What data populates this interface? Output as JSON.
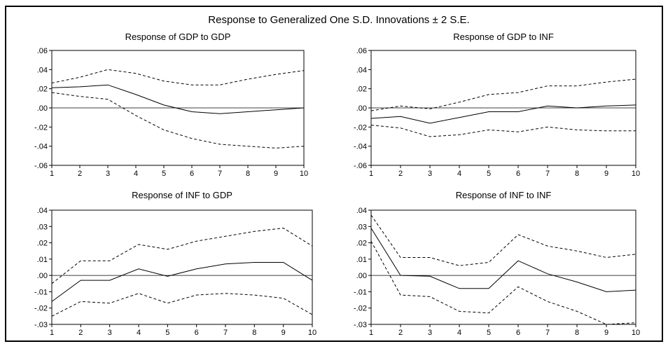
{
  "figure_title": "Response to Generalized One S.D. Innovations ± 2 S.E.",
  "chart_data": [
    {
      "type": "line",
      "title": "Response of GDP to GDP",
      "x": [
        1,
        2,
        3,
        4,
        5,
        6,
        7,
        8,
        9,
        10
      ],
      "ylim": [
        -0.06,
        0.06
      ],
      "yticks": [
        ".06",
        ".04",
        ".02",
        ".00",
        "-.02",
        "-.04",
        "-.06"
      ],
      "xticks": [
        "1",
        "2",
        "3",
        "4",
        "5",
        "6",
        "7",
        "8",
        "9",
        "10"
      ],
      "series": [
        {
          "style": "solid",
          "values": [
            0.021,
            0.022,
            0.024,
            0.014,
            0.003,
            -0.004,
            -0.006,
            -0.004,
            -0.002,
            0.0
          ]
        },
        {
          "style": "dashed",
          "values": [
            0.026,
            0.032,
            0.04,
            0.036,
            0.028,
            0.024,
            0.024,
            0.03,
            0.035,
            0.039
          ]
        },
        {
          "style": "dashed",
          "values": [
            0.016,
            0.012,
            0.009,
            -0.008,
            -0.023,
            -0.032,
            -0.038,
            -0.04,
            -0.042,
            -0.04
          ]
        }
      ]
    },
    {
      "type": "line",
      "title": "Response of GDP to INF",
      "x": [
        1,
        2,
        3,
        4,
        5,
        6,
        7,
        8,
        9,
        10
      ],
      "ylim": [
        -0.06,
        0.06
      ],
      "yticks": [
        ".06",
        ".04",
        ".02",
        ".00",
        "-.02",
        "-.04",
        "-.06"
      ],
      "xticks": [
        "1",
        "2",
        "3",
        "4",
        "5",
        "6",
        "7",
        "8",
        "9",
        "10"
      ],
      "series": [
        {
          "style": "solid",
          "values": [
            -0.011,
            -0.009,
            -0.016,
            -0.01,
            -0.004,
            -0.004,
            0.002,
            0.0,
            0.002,
            0.003
          ]
        },
        {
          "style": "dashed",
          "values": [
            -0.003,
            0.002,
            -0.001,
            0.006,
            0.014,
            0.016,
            0.023,
            0.023,
            0.027,
            0.03
          ]
        },
        {
          "style": "dashed",
          "values": [
            -0.018,
            -0.021,
            -0.03,
            -0.028,
            -0.023,
            -0.025,
            -0.02,
            -0.023,
            -0.024,
            -0.024
          ]
        }
      ]
    },
    {
      "type": "line",
      "title": "Response of INF to GDP",
      "x": [
        1,
        2,
        3,
        4,
        5,
        6,
        7,
        8,
        9,
        10
      ],
      "ylim": [
        -0.03,
        0.04
      ],
      "yticks": [
        ".04",
        ".03",
        ".02",
        ".01",
        ".00",
        "-.01",
        "-.02",
        "-.03"
      ],
      "xticks": [
        "1",
        "2",
        "3",
        "4",
        "5",
        "6",
        "7",
        "8",
        "9",
        "10"
      ],
      "series": [
        {
          "style": "solid",
          "values": [
            -0.016,
            -0.003,
            -0.003,
            0.004,
            -0.0005,
            0.004,
            0.007,
            0.008,
            0.008,
            -0.003
          ]
        },
        {
          "style": "dashed",
          "values": [
            -0.005,
            0.009,
            0.009,
            0.019,
            0.016,
            0.021,
            0.024,
            0.027,
            0.029,
            0.018
          ]
        },
        {
          "style": "dashed",
          "values": [
            -0.025,
            -0.016,
            -0.017,
            -0.011,
            -0.017,
            -0.012,
            -0.011,
            -0.012,
            -0.014,
            -0.024
          ]
        }
      ]
    },
    {
      "type": "line",
      "title": "Response of INF to INF",
      "x": [
        1,
        2,
        3,
        4,
        5,
        6,
        7,
        8,
        9,
        10
      ],
      "ylim": [
        -0.03,
        0.04
      ],
      "yticks": [
        ".04",
        ".03",
        ".02",
        ".01",
        ".00",
        "-.01",
        "-.02",
        "-.03"
      ],
      "xticks": [
        "1",
        "2",
        "3",
        "4",
        "5",
        "6",
        "7",
        "8",
        "9",
        "10"
      ],
      "series": [
        {
          "style": "solid",
          "values": [
            0.029,
            0.0,
            -0.0005,
            -0.008,
            -0.008,
            0.009,
            0.001,
            -0.004,
            -0.01,
            -0.009
          ]
        },
        {
          "style": "dashed",
          "values": [
            0.037,
            0.011,
            0.011,
            0.006,
            0.008,
            0.025,
            0.018,
            0.015,
            0.011,
            0.013
          ]
        },
        {
          "style": "dashed",
          "values": [
            0.021,
            -0.012,
            -0.013,
            -0.022,
            -0.023,
            -0.007,
            -0.016,
            -0.022,
            -0.03,
            -0.029
          ]
        }
      ]
    }
  ]
}
